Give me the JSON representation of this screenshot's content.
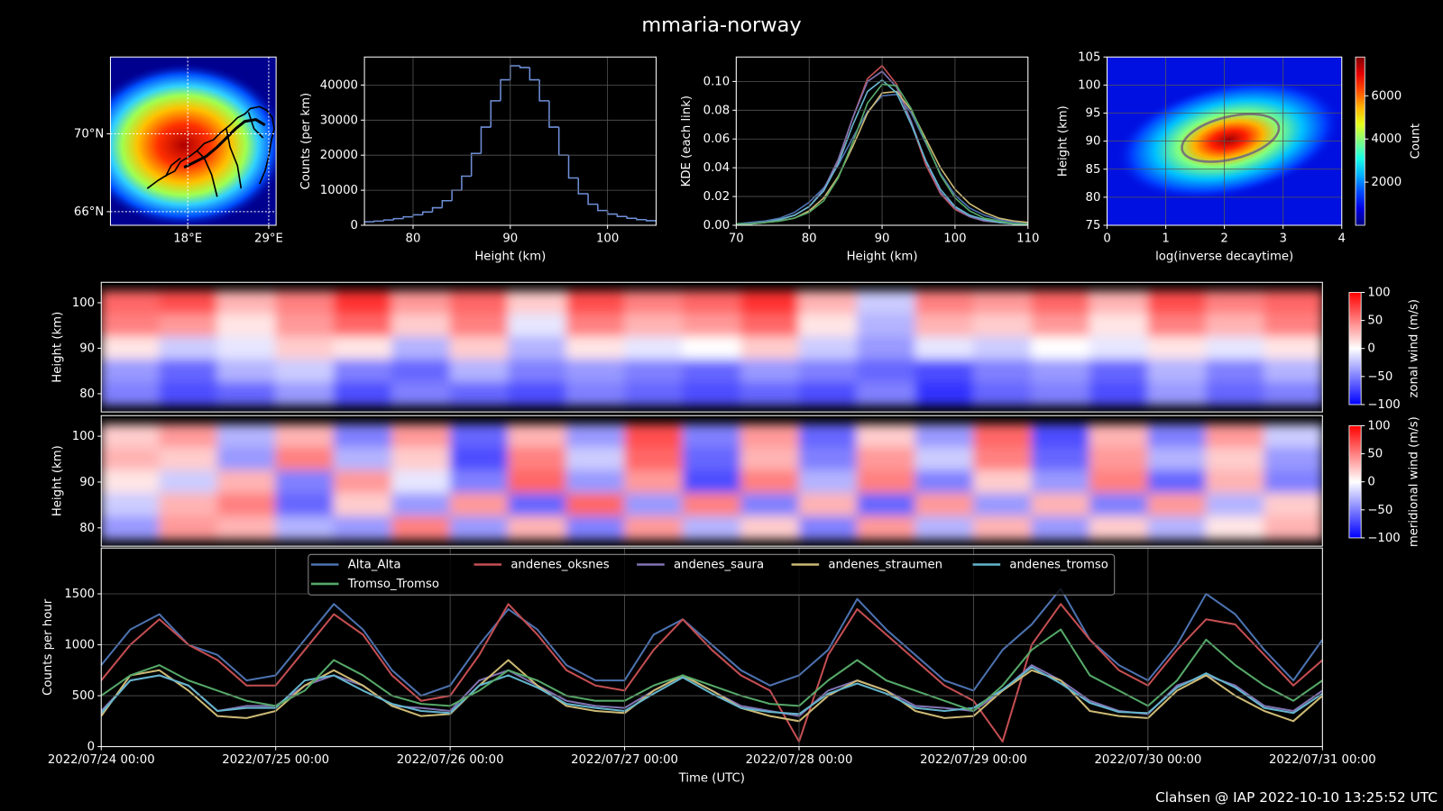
{
  "title": "mmaria-norway",
  "footer": "Clahsen @ IAP 2022-10-10 13:25:52 UTC",
  "chart_data": [
    {
      "type": "map",
      "xlim": [
        7.5,
        30
      ],
      "ylim": [
        65.3,
        73.95
      ],
      "xticks": [
        {
          "value": 18,
          "label": "18°E"
        },
        {
          "value": 29,
          "label": "29°E"
        }
      ],
      "yticks": [
        {
          "value": 66,
          "label": "66°N"
        },
        {
          "value": 70,
          "label": "70°N"
        }
      ],
      "grid": true
    },
    {
      "type": "histogram",
      "xlabel": "Height (km)",
      "ylabel": "Counts (per km)",
      "color": "#6f8fd8",
      "bins": [
        75,
        76,
        77,
        78,
        79,
        80,
        81,
        82,
        83,
        84,
        85,
        86,
        87,
        88,
        89,
        90,
        91,
        92,
        93,
        94,
        95,
        96,
        97,
        98,
        99,
        100,
        101,
        102,
        103,
        104,
        105
      ],
      "values": [
        1000,
        1200,
        1500,
        1900,
        2400,
        3000,
        3800,
        5000,
        7000,
        10000,
        14000,
        20500,
        28000,
        35500,
        41500,
        45500,
        45000,
        41500,
        35500,
        28000,
        20000,
        13500,
        9000,
        6000,
        4200,
        3200,
        2500,
        2000,
        1600,
        1300
      ],
      "xlim": [
        75,
        105
      ],
      "ylim": [
        0,
        48000
      ],
      "xticks": [
        80,
        90,
        100
      ],
      "yticks": [
        0,
        10000,
        20000,
        30000,
        40000
      ],
      "grid": true
    },
    {
      "type": "line",
      "xlabel": "Height (km)",
      "ylabel": "KDE (each link)",
      "x": [
        70,
        72,
        74,
        76,
        78,
        80,
        82,
        84,
        86,
        88,
        90,
        92,
        94,
        96,
        98,
        100,
        102,
        104,
        106,
        108,
        110
      ],
      "series": [
        {
          "color": "#4c72b0",
          "values": [
            0.001,
            0.002,
            0.003,
            0.005,
            0.009,
            0.016,
            0.026,
            0.042,
            0.061,
            0.079,
            0.09,
            0.091,
            0.078,
            0.057,
            0.036,
            0.021,
            0.012,
            0.007,
            0.004,
            0.002,
            0.001
          ]
        },
        {
          "color": "#c44e52",
          "values": [
            0.001,
            0.001,
            0.002,
            0.004,
            0.007,
            0.013,
            0.024,
            0.045,
            0.075,
            0.102,
            0.111,
            0.098,
            0.071,
            0.042,
            0.022,
            0.011,
            0.006,
            0.003,
            0.002,
            0.001,
            0.0
          ]
        },
        {
          "color": "#8172b2",
          "values": [
            0.001,
            0.001,
            0.002,
            0.004,
            0.007,
            0.013,
            0.025,
            0.046,
            0.075,
            0.1,
            0.107,
            0.096,
            0.072,
            0.044,
            0.023,
            0.012,
            0.006,
            0.003,
            0.002,
            0.001,
            0.0
          ]
        },
        {
          "color": "#ccb974",
          "values": [
            0.001,
            0.001,
            0.002,
            0.003,
            0.005,
            0.01,
            0.019,
            0.034,
            0.055,
            0.078,
            0.092,
            0.093,
            0.08,
            0.06,
            0.04,
            0.025,
            0.015,
            0.009,
            0.005,
            0.003,
            0.002
          ]
        },
        {
          "color": "#64b5cd",
          "values": [
            0.001,
            0.001,
            0.002,
            0.004,
            0.007,
            0.013,
            0.024,
            0.043,
            0.07,
            0.093,
            0.101,
            0.092,
            0.07,
            0.045,
            0.025,
            0.013,
            0.007,
            0.004,
            0.002,
            0.001,
            0.0
          ]
        },
        {
          "color": "#55a868",
          "values": [
            0.001,
            0.001,
            0.002,
            0.003,
            0.005,
            0.009,
            0.017,
            0.033,
            0.058,
            0.085,
            0.098,
            0.097,
            0.081,
            0.058,
            0.035,
            0.019,
            0.01,
            0.005,
            0.003,
            0.001,
            0.001
          ]
        }
      ],
      "xlim": [
        70,
        110
      ],
      "ylim": [
        0,
        0.117
      ],
      "xticks": [
        70,
        80,
        90,
        100,
        110
      ],
      "yticks": [
        {
          "value": 0,
          "label": "0.00"
        },
        {
          "value": 0.02,
          "label": "0.02"
        },
        {
          "value": 0.04,
          "label": "0.04"
        },
        {
          "value": 0.06,
          "label": "0.06"
        },
        {
          "value": 0.08,
          "label": "0.08"
        },
        {
          "value": 0.1,
          "label": "0.10"
        }
      ],
      "grid": true
    },
    {
      "type": "hist2d",
      "xlabel": "log(inverse decaytime)",
      "ylabel": "Height (km)",
      "xlim": [
        0,
        4
      ],
      "ylim": [
        75,
        105
      ],
      "xticks": [
        0,
        1,
        2,
        3,
        4
      ],
      "yticks": [
        75,
        80,
        85,
        90,
        95,
        100,
        105
      ],
      "grid": true,
      "colorbar": {
        "label": "Count",
        "colormap": "jet",
        "clim": [
          0,
          7800
        ],
        "ticks": [
          2000,
          4000,
          6000
        ]
      }
    },
    {
      "type": "heatmap",
      "ylabel": "Height (km)",
      "ylim": [
        76,
        104.5
      ],
      "yticks": [
        80,
        90,
        100
      ],
      "y": [
        100,
        95,
        90,
        85,
        80
      ],
      "values": [
        [
          60,
          70,
          30,
          50,
          80,
          40,
          60,
          20,
          70,
          50,
          60,
          80,
          30,
          -20,
          50,
          40,
          60,
          30,
          70,
          50,
          60
        ],
        [
          50,
          40,
          10,
          40,
          60,
          20,
          50,
          -10,
          50,
          30,
          40,
          60,
          10,
          -30,
          30,
          20,
          40,
          10,
          50,
          30,
          50
        ],
        [
          10,
          -20,
          -10,
          20,
          10,
          -30,
          20,
          -30,
          10,
          -10,
          0,
          20,
          -20,
          -40,
          -10,
          -20,
          0,
          -10,
          10,
          -10,
          10
        ],
        [
          -40,
          -60,
          -30,
          -20,
          -50,
          -60,
          -30,
          -50,
          -40,
          -50,
          -60,
          -40,
          -50,
          -60,
          -70,
          -50,
          -40,
          -60,
          -30,
          -50,
          -30
        ],
        [
          -50,
          -70,
          -60,
          -40,
          -70,
          -50,
          -60,
          -70,
          -50,
          -60,
          -70,
          -60,
          -70,
          -50,
          -80,
          -60,
          -50,
          -70,
          -40,
          -60,
          -50
        ]
      ],
      "colorbar": {
        "label": "zonal wind (m/s)",
        "colormap": "bwr",
        "clim": [
          -100,
          100
        ],
        "ticks": [
          {
            "value": -100,
            "label": "−100"
          },
          {
            "value": -50,
            "label": "−50"
          },
          0,
          50,
          100
        ]
      }
    },
    {
      "type": "heatmap",
      "ylabel": "Height (km)",
      "ylim": [
        76,
        104.5
      ],
      "yticks": [
        80,
        90,
        100
      ],
      "y": [
        100,
        95,
        90,
        85,
        80
      ],
      "values": [
        [
          20,
          40,
          -30,
          30,
          -50,
          40,
          -60,
          30,
          -40,
          70,
          -50,
          40,
          -60,
          20,
          -40,
          60,
          -70,
          30,
          -50,
          40,
          -20
        ],
        [
          30,
          20,
          -40,
          50,
          -30,
          20,
          -70,
          50,
          -20,
          60,
          -60,
          30,
          -50,
          40,
          -20,
          50,
          -60,
          40,
          -30,
          20,
          -40
        ],
        [
          10,
          -20,
          30,
          -50,
          40,
          -10,
          -50,
          60,
          -40,
          40,
          -70,
          50,
          -30,
          50,
          -50,
          20,
          -40,
          50,
          -60,
          30,
          -50
        ],
        [
          -20,
          30,
          50,
          -60,
          20,
          -40,
          40,
          -60,
          60,
          -40,
          50,
          -50,
          30,
          -60,
          40,
          -40,
          30,
          -50,
          40,
          -30,
          20
        ],
        [
          -40,
          40,
          30,
          -30,
          -40,
          50,
          -40,
          30,
          -50,
          40,
          -30,
          20,
          -50,
          40,
          -30,
          30,
          -40,
          20,
          -30,
          10,
          30
        ]
      ],
      "colorbar": {
        "label": "meridional wind (m/s)",
        "colormap": "bwr",
        "clim": [
          -100,
          100
        ],
        "ticks": [
          {
            "value": -100,
            "label": "−100"
          },
          {
            "value": -50,
            "label": "−50"
          },
          0,
          50,
          100
        ]
      }
    },
    {
      "type": "line",
      "xlabel": "Time (UTC)",
      "ylabel": "Counts per hour",
      "legend": "upper center",
      "x": [
        "2022/07/24 00:00",
        "2022/07/24 04:00",
        "2022/07/24 08:00",
        "2022/07/24 12:00",
        "2022/07/24 16:00",
        "2022/07/24 20:00",
        "2022/07/25 00:00",
        "2022/07/25 04:00",
        "2022/07/25 08:00",
        "2022/07/25 12:00",
        "2022/07/25 16:00",
        "2022/07/25 20:00",
        "2022/07/26 00:00",
        "2022/07/26 04:00",
        "2022/07/26 08:00",
        "2022/07/26 12:00",
        "2022/07/26 16:00",
        "2022/07/26 20:00",
        "2022/07/27 00:00",
        "2022/07/27 04:00",
        "2022/07/27 08:00",
        "2022/07/27 12:00",
        "2022/07/27 16:00",
        "2022/07/27 20:00",
        "2022/07/28 00:00",
        "2022/07/28 04:00",
        "2022/07/28 08:00",
        "2022/07/28 12:00",
        "2022/07/28 16:00",
        "2022/07/28 20:00",
        "2022/07/29 00:00",
        "2022/07/29 04:00",
        "2022/07/29 08:00",
        "2022/07/29 12:00",
        "2022/07/29 16:00",
        "2022/07/29 20:00",
        "2022/07/30 00:00",
        "2022/07/30 04:00",
        "2022/07/30 08:00",
        "2022/07/30 12:00",
        "2022/07/30 16:00",
        "2022/07/30 20:00",
        "2022/07/31 00:00"
      ],
      "series": [
        {
          "name": "Alta_Alta",
          "color": "#4c72b0",
          "values": [
            800,
            1150,
            1300,
            1000,
            900,
            650,
            700,
            1050,
            1400,
            1150,
            750,
            500,
            600,
            1000,
            1350,
            1150,
            800,
            650,
            650,
            1100,
            1250,
            1000,
            750,
            600,
            700,
            950,
            1450,
            1150,
            900,
            650,
            550,
            950,
            1200,
            1550,
            1050,
            800,
            650,
            1000,
            1500,
            1300,
            950,
            650,
            1050
          ]
        },
        {
          "name": "andenes_oksnes",
          "color": "#c44e52",
          "values": [
            650,
            1000,
            1250,
            1000,
            850,
            600,
            600,
            950,
            1300,
            1100,
            700,
            450,
            500,
            900,
            1400,
            1100,
            750,
            600,
            550,
            950,
            1250,
            950,
            700,
            550,
            50,
            900,
            1350,
            1100,
            850,
            600,
            450,
            50,
            1000,
            1400,
            1050,
            750,
            600,
            950,
            1250,
            1200,
            900,
            600,
            850
          ]
        },
        {
          "name": "andenes_saura",
          "color": "#8172b2",
          "values": [
            350,
            650,
            700,
            600,
            350,
            400,
            400,
            600,
            700,
            600,
            400,
            380,
            350,
            650,
            750,
            600,
            450,
            400,
            380,
            550,
            700,
            550,
            400,
            350,
            300,
            550,
            650,
            550,
            400,
            380,
            350,
            550,
            800,
            650,
            450,
            350,
            320,
            600,
            700,
            600,
            400,
            350,
            550
          ]
        },
        {
          "name": "andenes_straumen",
          "color": "#ccb974",
          "values": [
            300,
            700,
            750,
            550,
            300,
            280,
            350,
            600,
            750,
            600,
            400,
            300,
            320,
            600,
            850,
            600,
            400,
            350,
            330,
            550,
            700,
            550,
            380,
            300,
            250,
            500,
            650,
            550,
            350,
            280,
            300,
            550,
            750,
            650,
            350,
            300,
            280,
            550,
            700,
            500,
            350,
            250,
            500
          ]
        },
        {
          "name": "andenes_tromso",
          "color": "#64b5cd",
          "values": [
            330,
            650,
            700,
            600,
            350,
            380,
            380,
            650,
            700,
            550,
            420,
            350,
            330,
            600,
            700,
            580,
            420,
            380,
            350,
            520,
            680,
            520,
            380,
            340,
            320,
            520,
            620,
            520,
            380,
            350,
            380,
            560,
            780,
            620,
            430,
            340,
            330,
            580,
            720,
            580,
            380,
            330,
            520
          ]
        },
        {
          "name": "Tromso_Tromso",
          "color": "#55a868",
          "values": [
            500,
            700,
            800,
            650,
            550,
            450,
            400,
            550,
            850,
            700,
            500,
            420,
            400,
            550,
            750,
            650,
            500,
            450,
            450,
            600,
            700,
            600,
            500,
            420,
            400,
            650,
            850,
            650,
            550,
            450,
            350,
            600,
            950,
            1150,
            700,
            550,
            400,
            650,
            1050,
            800,
            600,
            450,
            650
          ]
        }
      ],
      "xlim": [
        "2022/07/24 00:00",
        "2022/07/31 00:00"
      ],
      "xticks": [
        "2022/07/24 00:00",
        "2022/07/25 00:00",
        "2022/07/26 00:00",
        "2022/07/27 00:00",
        "2022/07/28 00:00",
        "2022/07/29 00:00",
        "2022/07/30 00:00",
        "2022/07/31 00:00"
      ],
      "ylim": [
        0,
        1950
      ],
      "yticks": [
        0,
        500,
        1000,
        1500
      ],
      "grid": true
    }
  ]
}
